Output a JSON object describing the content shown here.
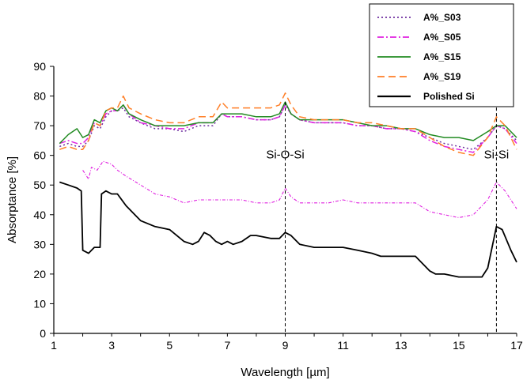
{
  "chart_data": {
    "type": "line",
    "xlabel": "Wavelength [µm]",
    "ylabel": "Absorptance [%]",
    "xlim": [
      1,
      17
    ],
    "ylim": [
      0,
      90
    ],
    "x_ticks": [
      1,
      3,
      5,
      7,
      9,
      11,
      13,
      15,
      17
    ],
    "y_ticks": [
      0,
      10,
      20,
      30,
      40,
      50,
      60,
      70,
      80,
      90
    ],
    "grid": false,
    "legend_position": "top-right",
    "annotations": [
      {
        "text": "Si-O-Si",
        "x": 9.0
      },
      {
        "text": "Si-Si",
        "x": 16.3
      }
    ],
    "series": [
      {
        "name": "A%_S03",
        "color": "#7030a0",
        "style": "dotted",
        "points": [
          [
            1.2,
            63
          ],
          [
            1.5,
            64
          ],
          [
            1.8,
            63
          ],
          [
            2.0,
            63
          ],
          [
            2.2,
            65
          ],
          [
            2.4,
            70
          ],
          [
            2.6,
            69
          ],
          [
            2.8,
            73
          ],
          [
            3.0,
            75
          ],
          [
            3.2,
            75
          ],
          [
            3.4,
            76
          ],
          [
            3.6,
            73
          ],
          [
            4.0,
            71
          ],
          [
            4.5,
            69
          ],
          [
            5.0,
            69
          ],
          [
            5.5,
            68
          ],
          [
            6.0,
            70
          ],
          [
            6.5,
            70
          ],
          [
            6.8,
            74
          ],
          [
            7.0,
            73
          ],
          [
            7.5,
            73
          ],
          [
            8.0,
            72
          ],
          [
            8.5,
            72
          ],
          [
            8.8,
            73
          ],
          [
            9.0,
            77
          ],
          [
            9.2,
            74
          ],
          [
            9.5,
            72
          ],
          [
            10.0,
            71
          ],
          [
            10.5,
            71
          ],
          [
            11.0,
            71
          ],
          [
            11.5,
            70
          ],
          [
            12.0,
            70
          ],
          [
            12.5,
            69
          ],
          [
            13.0,
            69
          ],
          [
            13.5,
            68
          ],
          [
            14.0,
            66
          ],
          [
            14.5,
            64
          ],
          [
            15.0,
            63
          ],
          [
            15.5,
            62
          ],
          [
            16.0,
            66
          ],
          [
            16.3,
            70
          ],
          [
            16.6,
            69
          ],
          [
            17.0,
            65
          ]
        ]
      },
      {
        "name": "A%_S05",
        "color": "#e020e0",
        "style": "dash-dot",
        "points": [
          [
            1.2,
            64
          ],
          [
            1.5,
            65
          ],
          [
            1.8,
            64
          ],
          [
            2.0,
            64
          ],
          [
            2.2,
            66
          ],
          [
            2.4,
            71
          ],
          [
            2.6,
            70
          ],
          [
            2.8,
            74
          ],
          [
            3.0,
            75
          ],
          [
            3.2,
            75
          ],
          [
            3.4,
            77
          ],
          [
            3.6,
            74
          ],
          [
            4.0,
            71
          ],
          [
            4.5,
            70
          ],
          [
            5.0,
            69
          ],
          [
            5.5,
            69
          ],
          [
            6.0,
            71
          ],
          [
            6.5,
            71
          ],
          [
            6.8,
            74
          ],
          [
            7.0,
            73
          ],
          [
            7.5,
            73
          ],
          [
            8.0,
            72
          ],
          [
            8.5,
            72
          ],
          [
            8.8,
            73
          ],
          [
            9.0,
            77
          ],
          [
            9.2,
            74
          ],
          [
            9.5,
            72
          ],
          [
            10.0,
            71
          ],
          [
            10.5,
            71
          ],
          [
            11.0,
            71
          ],
          [
            11.5,
            70
          ],
          [
            12.0,
            70
          ],
          [
            12.5,
            69
          ],
          [
            13.0,
            69
          ],
          [
            13.5,
            68
          ],
          [
            14.0,
            65
          ],
          [
            14.5,
            63
          ],
          [
            15.0,
            62
          ],
          [
            15.5,
            61
          ],
          [
            16.0,
            66
          ],
          [
            16.3,
            70
          ],
          [
            16.6,
            69
          ],
          [
            17.0,
            64
          ]
        ]
      },
      {
        "name": "A%_S15",
        "color": "#228b22",
        "style": "solid",
        "points": [
          [
            1.2,
            64
          ],
          [
            1.5,
            67
          ],
          [
            1.8,
            69
          ],
          [
            2.0,
            66
          ],
          [
            2.2,
            67
          ],
          [
            2.4,
            72
          ],
          [
            2.6,
            71
          ],
          [
            2.8,
            75
          ],
          [
            3.0,
            76
          ],
          [
            3.2,
            75
          ],
          [
            3.4,
            77
          ],
          [
            3.6,
            74
          ],
          [
            4.0,
            72
          ],
          [
            4.5,
            70
          ],
          [
            5.0,
            70
          ],
          [
            5.5,
            70
          ],
          [
            6.0,
            71
          ],
          [
            6.5,
            71
          ],
          [
            6.8,
            74
          ],
          [
            7.0,
            74
          ],
          [
            7.5,
            74
          ],
          [
            8.0,
            73
          ],
          [
            8.5,
            73
          ],
          [
            8.8,
            74
          ],
          [
            9.0,
            78
          ],
          [
            9.2,
            74
          ],
          [
            9.5,
            72
          ],
          [
            10.0,
            72
          ],
          [
            10.5,
            72
          ],
          [
            11.0,
            72
          ],
          [
            11.5,
            71
          ],
          [
            12.0,
            70
          ],
          [
            12.5,
            70
          ],
          [
            13.0,
            69
          ],
          [
            13.5,
            69
          ],
          [
            14.0,
            67
          ],
          [
            14.5,
            66
          ],
          [
            15.0,
            66
          ],
          [
            15.5,
            65
          ],
          [
            16.0,
            68
          ],
          [
            16.3,
            70
          ],
          [
            16.6,
            70
          ],
          [
            17.0,
            66
          ]
        ]
      },
      {
        "name": "A%_S19",
        "color": "#ff7f27",
        "style": "dashed",
        "points": [
          [
            1.2,
            62
          ],
          [
            1.5,
            63
          ],
          [
            1.8,
            62
          ],
          [
            2.0,
            62
          ],
          [
            2.2,
            65
          ],
          [
            2.4,
            71
          ],
          [
            2.6,
            70
          ],
          [
            2.8,
            75
          ],
          [
            3.0,
            76
          ],
          [
            3.2,
            76
          ],
          [
            3.4,
            80
          ],
          [
            3.6,
            76
          ],
          [
            4.0,
            74
          ],
          [
            4.5,
            72
          ],
          [
            5.0,
            71
          ],
          [
            5.5,
            71
          ],
          [
            6.0,
            73
          ],
          [
            6.5,
            73
          ],
          [
            6.8,
            78
          ],
          [
            7.0,
            76
          ],
          [
            7.5,
            76
          ],
          [
            8.0,
            76
          ],
          [
            8.5,
            76
          ],
          [
            8.8,
            77
          ],
          [
            9.0,
            81
          ],
          [
            9.2,
            77
          ],
          [
            9.5,
            73
          ],
          [
            10.0,
            72
          ],
          [
            10.5,
            72
          ],
          [
            11.0,
            72
          ],
          [
            11.5,
            71
          ],
          [
            12.0,
            71
          ],
          [
            12.5,
            70
          ],
          [
            13.0,
            69
          ],
          [
            13.5,
            69
          ],
          [
            14.0,
            66
          ],
          [
            14.5,
            63
          ],
          [
            15.0,
            61
          ],
          [
            15.5,
            60
          ],
          [
            16.0,
            66
          ],
          [
            16.3,
            73
          ],
          [
            16.6,
            70
          ],
          [
            17.0,
            62
          ]
        ]
      },
      {
        "name": "",
        "color": "#e020e0",
        "style": "dash-dot",
        "points": [
          [
            2.0,
            55
          ],
          [
            2.2,
            52
          ],
          [
            2.3,
            56
          ],
          [
            2.5,
            55
          ],
          [
            2.7,
            58
          ],
          [
            3.0,
            57
          ],
          [
            3.2,
            55
          ],
          [
            3.5,
            53
          ],
          [
            4.0,
            50
          ],
          [
            4.5,
            47
          ],
          [
            5.0,
            46
          ],
          [
            5.5,
            44
          ],
          [
            6.0,
            45
          ],
          [
            6.5,
            45
          ],
          [
            7.0,
            45
          ],
          [
            7.5,
            45
          ],
          [
            8.0,
            44
          ],
          [
            8.5,
            44
          ],
          [
            8.8,
            45
          ],
          [
            9.0,
            49
          ],
          [
            9.2,
            46
          ],
          [
            9.5,
            44
          ],
          [
            10.0,
            44
          ],
          [
            10.5,
            44
          ],
          [
            11.0,
            45
          ],
          [
            11.5,
            44
          ],
          [
            12.0,
            44
          ],
          [
            12.5,
            44
          ],
          [
            13.0,
            44
          ],
          [
            13.5,
            44
          ],
          [
            14.0,
            41
          ],
          [
            14.5,
            40
          ],
          [
            15.0,
            39
          ],
          [
            15.5,
            40
          ],
          [
            16.0,
            45
          ],
          [
            16.3,
            51
          ],
          [
            16.6,
            48
          ],
          [
            17.0,
            42
          ]
        ]
      },
      {
        "name": "Polished Si",
        "color": "#000000",
        "style": "solid",
        "points": [
          [
            1.2,
            51
          ],
          [
            1.5,
            50
          ],
          [
            1.8,
            49
          ],
          [
            1.95,
            48
          ],
          [
            2.0,
            28
          ],
          [
            2.2,
            27
          ],
          [
            2.4,
            29
          ],
          [
            2.6,
            29
          ],
          [
            2.65,
            47
          ],
          [
            2.8,
            48
          ],
          [
            3.0,
            47
          ],
          [
            3.2,
            47
          ],
          [
            3.5,
            43
          ],
          [
            4.0,
            38
          ],
          [
            4.5,
            36
          ],
          [
            5.0,
            35
          ],
          [
            5.5,
            31
          ],
          [
            5.8,
            30
          ],
          [
            6.0,
            31
          ],
          [
            6.2,
            34
          ],
          [
            6.4,
            33
          ],
          [
            6.6,
            31
          ],
          [
            6.8,
            30
          ],
          [
            7.0,
            31
          ],
          [
            7.2,
            30
          ],
          [
            7.5,
            31
          ],
          [
            7.8,
            33
          ],
          [
            8.0,
            33
          ],
          [
            8.5,
            32
          ],
          [
            8.8,
            32
          ],
          [
            9.0,
            34
          ],
          [
            9.2,
            33
          ],
          [
            9.5,
            30
          ],
          [
            10.0,
            29
          ],
          [
            10.5,
            29
          ],
          [
            11.0,
            29
          ],
          [
            11.5,
            28
          ],
          [
            12.0,
            27
          ],
          [
            12.3,
            26
          ],
          [
            12.5,
            26
          ],
          [
            13.0,
            26
          ],
          [
            13.5,
            26
          ],
          [
            14.0,
            21
          ],
          [
            14.2,
            20
          ],
          [
            14.5,
            20
          ],
          [
            15.0,
            19
          ],
          [
            15.5,
            19
          ],
          [
            15.8,
            19
          ],
          [
            16.0,
            22
          ],
          [
            16.3,
            36
          ],
          [
            16.5,
            35
          ],
          [
            16.8,
            28
          ],
          [
            17.0,
            24
          ]
        ]
      }
    ]
  }
}
